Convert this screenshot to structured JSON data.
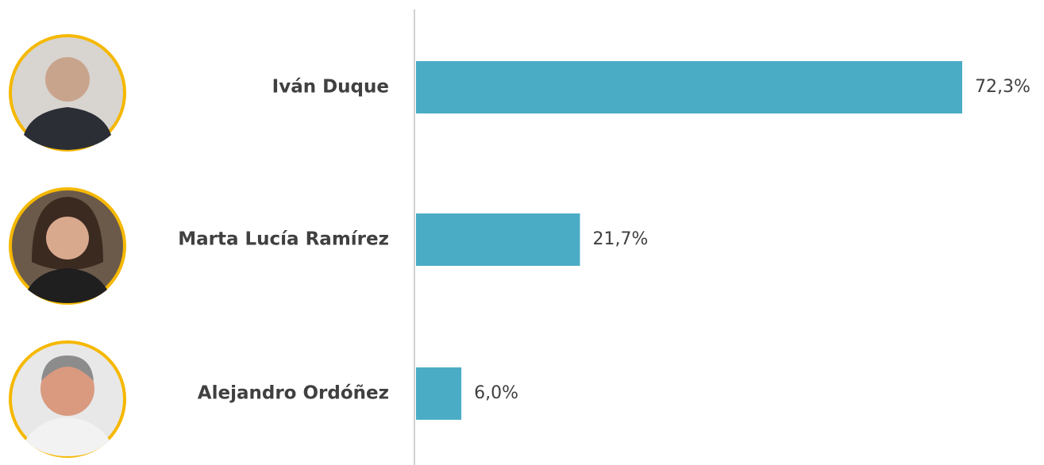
{
  "chart_data": {
    "type": "bar",
    "orientation": "horizontal",
    "categories": [
      "Iván Duque",
      "Marta Lucía Ramírez",
      "Alejandro Ordóñez"
    ],
    "values": [
      72.3,
      21.7,
      6.0
    ],
    "value_labels": [
      "72,3%",
      "21,7%",
      "6,0%"
    ],
    "color": "#4bacc6"
  }
}
